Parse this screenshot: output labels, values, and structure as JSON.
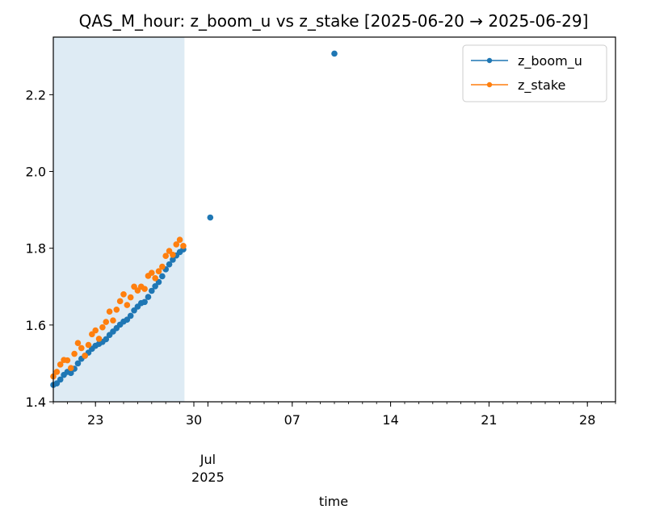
{
  "chart_data": {
    "type": "scatter",
    "title": "QAS_M_hour: z_boom_u vs z_stake  [2025-06-20 → 2025-06-29]",
    "xlabel": "time",
    "ylabel": "",
    "xlim": [
      "2025-06-20",
      "2025-07-30"
    ],
    "ylim": [
      1.4,
      2.35
    ],
    "y_ticks": [
      "1.4",
      "1.6",
      "1.8",
      "2.0",
      "2.2"
    ],
    "x_ticks": [
      {
        "date": "2025-06-23",
        "label": "23"
      },
      {
        "date": "2025-06-30",
        "label": "30"
      },
      {
        "date": "2025-07-07",
        "label": "07"
      },
      {
        "date": "2025-07-14",
        "label": "14"
      },
      {
        "date": "2025-07-21",
        "label": "21"
      },
      {
        "date": "2025-07-28",
        "label": "28"
      }
    ],
    "x_major_label": {
      "date": "2025-07-01",
      "month": "Jul",
      "year": "2025"
    },
    "highlight_span": [
      "2025-06-20",
      "2025-06-29 08:00"
    ],
    "legend_position": "upper-right",
    "grid": false,
    "series": [
      {
        "name": "z_boom_u",
        "color": "#1f77b4",
        "points": [
          [
            "2025-06-20 00:00",
            1.444
          ],
          [
            "2025-06-20 06:00",
            1.448
          ],
          [
            "2025-06-20 12:00",
            1.458
          ],
          [
            "2025-06-20 18:00",
            1.47
          ],
          [
            "2025-06-21 00:00",
            1.478
          ],
          [
            "2025-06-21 06:00",
            1.475
          ],
          [
            "2025-06-21 12:00",
            1.486
          ],
          [
            "2025-06-21 18:00",
            1.5
          ],
          [
            "2025-06-22 00:00",
            1.512
          ],
          [
            "2025-06-22 06:00",
            1.52
          ],
          [
            "2025-06-22 12:00",
            1.528
          ],
          [
            "2025-06-22 18:00",
            1.538
          ],
          [
            "2025-06-23 00:00",
            1.546
          ],
          [
            "2025-06-23 06:00",
            1.551
          ],
          [
            "2025-06-23 12:00",
            1.556
          ],
          [
            "2025-06-23 18:00",
            1.563
          ],
          [
            "2025-06-24 00:00",
            1.574
          ],
          [
            "2025-06-24 06:00",
            1.583
          ],
          [
            "2025-06-24 12:00",
            1.592
          ],
          [
            "2025-06-24 18:00",
            1.601
          ],
          [
            "2025-06-25 00:00",
            1.609
          ],
          [
            "2025-06-25 06:00",
            1.614
          ],
          [
            "2025-06-25 12:00",
            1.624
          ],
          [
            "2025-06-25 18:00",
            1.638
          ],
          [
            "2025-06-26 00:00",
            1.648
          ],
          [
            "2025-06-26 06:00",
            1.657
          ],
          [
            "2025-06-26 12:00",
            1.66
          ],
          [
            "2025-06-26 18:00",
            1.673
          ],
          [
            "2025-06-27 00:00",
            1.689
          ],
          [
            "2025-06-27 06:00",
            1.701
          ],
          [
            "2025-06-27 12:00",
            1.712
          ],
          [
            "2025-06-27 18:00",
            1.727
          ],
          [
            "2025-06-28 00:00",
            1.745
          ],
          [
            "2025-06-28 06:00",
            1.758
          ],
          [
            "2025-06-28 12:00",
            1.77
          ],
          [
            "2025-06-28 18:00",
            1.781
          ],
          [
            "2025-06-29 00:00",
            1.79
          ],
          [
            "2025-06-29 06:00",
            1.797
          ],
          [
            "2025-07-01 04:00",
            1.88
          ],
          [
            "2025-07-10 00:00",
            2.307
          ]
        ]
      },
      {
        "name": "z_stake",
        "color": "#ff7f0e",
        "points": [
          [
            "2025-06-20 00:00",
            1.466
          ],
          [
            "2025-06-20 06:00",
            1.478
          ],
          [
            "2025-06-20 12:00",
            1.497
          ],
          [
            "2025-06-20 18:00",
            1.509
          ],
          [
            "2025-06-21 00:00",
            1.508
          ],
          [
            "2025-06-21 06:00",
            1.488
          ],
          [
            "2025-06-21 12:00",
            1.525
          ],
          [
            "2025-06-21 18:00",
            1.553
          ],
          [
            "2025-06-22 00:00",
            1.54
          ],
          [
            "2025-06-22 06:00",
            1.52
          ],
          [
            "2025-06-22 12:00",
            1.548
          ],
          [
            "2025-06-22 18:00",
            1.576
          ],
          [
            "2025-06-23 00:00",
            1.586
          ],
          [
            "2025-06-23 06:00",
            1.564
          ],
          [
            "2025-06-23 12:00",
            1.594
          ],
          [
            "2025-06-23 18:00",
            1.608
          ],
          [
            "2025-06-24 00:00",
            1.635
          ],
          [
            "2025-06-24 06:00",
            1.612
          ],
          [
            "2025-06-24 12:00",
            1.64
          ],
          [
            "2025-06-24 18:00",
            1.662
          ],
          [
            "2025-06-25 00:00",
            1.68
          ],
          [
            "2025-06-25 06:00",
            1.652
          ],
          [
            "2025-06-25 12:00",
            1.672
          ],
          [
            "2025-06-25 18:00",
            1.7
          ],
          [
            "2025-06-26 00:00",
            1.69
          ],
          [
            "2025-06-26 06:00",
            1.7
          ],
          [
            "2025-06-26 12:00",
            1.694
          ],
          [
            "2025-06-26 18:00",
            1.728
          ],
          [
            "2025-06-27 00:00",
            1.736
          ],
          [
            "2025-06-27 06:00",
            1.722
          ],
          [
            "2025-06-27 12:00",
            1.74
          ],
          [
            "2025-06-27 18:00",
            1.752
          ],
          [
            "2025-06-28 00:00",
            1.78
          ],
          [
            "2025-06-28 06:00",
            1.793
          ],
          [
            "2025-06-28 12:00",
            1.783
          ],
          [
            "2025-06-28 18:00",
            1.81
          ],
          [
            "2025-06-29 00:00",
            1.822
          ],
          [
            "2025-06-29 06:00",
            1.806
          ]
        ]
      }
    ]
  }
}
